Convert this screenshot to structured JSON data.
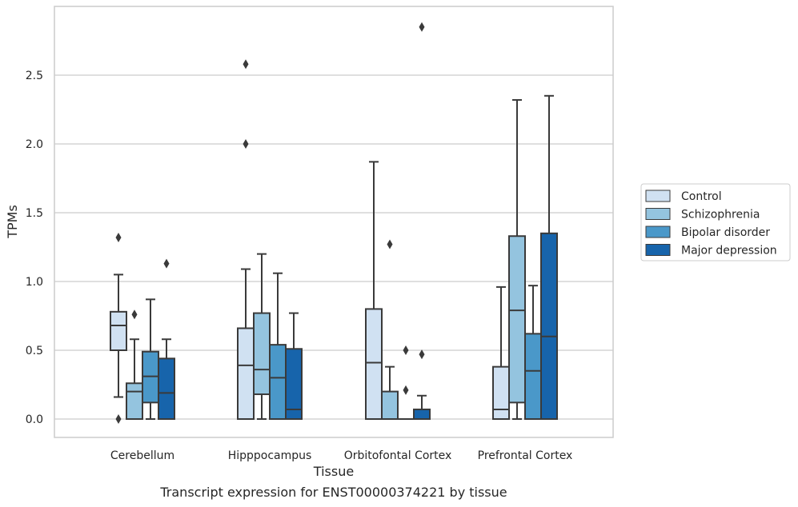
{
  "caption": "Transcript expression for ENST00000374221 by tissue",
  "chart_data": {
    "type": "box",
    "xlabel": "Tissue",
    "ylabel": "TPMs",
    "ylim": [
      -0.14,
      2.99
    ],
    "yticks": [
      0.0,
      0.5,
      1.0,
      1.5,
      2.0,
      2.5
    ],
    "ytick_labels": [
      "0.0",
      "0.5",
      "1.0",
      "1.5",
      "2.0",
      "2.5"
    ],
    "grid": "horizontal",
    "legend_position": "outside-right",
    "categories": [
      "Cerebellum",
      "Hipppocampus",
      "Orbitofontal Cortex",
      "Prefrontal Cortex"
    ],
    "series": [
      {
        "name": "Control",
        "color": "#d0e1f2",
        "boxes": [
          {
            "q1": 0.5,
            "median": 0.68,
            "q3": 0.78,
            "whislo": 0.16,
            "whishi": 1.05,
            "fliers": [
              1.32,
              0.0
            ]
          },
          {
            "q1": 0.0,
            "median": 0.39,
            "q3": 0.66,
            "whislo": 0.0,
            "whishi": 1.09,
            "fliers": [
              2.58,
              2.0
            ]
          },
          {
            "q1": 0.0,
            "median": 0.41,
            "q3": 0.8,
            "whislo": 0.0,
            "whishi": 1.87,
            "fliers": []
          },
          {
            "q1": 0.0,
            "median": 0.07,
            "q3": 0.38,
            "whislo": 0.0,
            "whishi": 0.96,
            "fliers": []
          }
        ]
      },
      {
        "name": "Schizophrenia",
        "color": "#94c4df",
        "boxes": [
          {
            "q1": 0.0,
            "median": 0.2,
            "q3": 0.26,
            "whislo": 0.0,
            "whishi": 0.58,
            "fliers": [
              0.76
            ]
          },
          {
            "q1": 0.18,
            "median": 0.36,
            "q3": 0.77,
            "whislo": 0.0,
            "whishi": 1.2,
            "fliers": []
          },
          {
            "q1": 0.0,
            "median": 0.0,
            "q3": 0.2,
            "whislo": 0.0,
            "whishi": 0.38,
            "fliers": [
              1.27
            ]
          },
          {
            "q1": 0.12,
            "median": 0.79,
            "q3": 1.33,
            "whislo": 0.0,
            "whishi": 2.32,
            "fliers": []
          }
        ]
      },
      {
        "name": "Bipolar disorder",
        "color": "#4a98c9",
        "boxes": [
          {
            "q1": 0.12,
            "median": 0.31,
            "q3": 0.49,
            "whislo": 0.0,
            "whishi": 0.87,
            "fliers": []
          },
          {
            "q1": 0.0,
            "median": 0.3,
            "q3": 0.54,
            "whislo": 0.0,
            "whishi": 1.06,
            "fliers": []
          },
          {
            "q1": 0.0,
            "median": 0.0,
            "q3": 0.0,
            "whislo": 0.0,
            "whishi": 0.0,
            "fliers": [
              0.5,
              0.21
            ]
          },
          {
            "q1": 0.0,
            "median": 0.35,
            "q3": 0.62,
            "whislo": 0.0,
            "whishi": 0.97,
            "fliers": []
          }
        ]
      },
      {
        "name": "Major depression",
        "color": "#1764ab",
        "boxes": [
          {
            "q1": 0.0,
            "median": 0.19,
            "q3": 0.44,
            "whislo": 0.0,
            "whishi": 0.58,
            "fliers": [
              1.13
            ]
          },
          {
            "q1": 0.0,
            "median": 0.07,
            "q3": 0.51,
            "whislo": 0.0,
            "whishi": 0.77,
            "fliers": []
          },
          {
            "q1": 0.0,
            "median": 0.0,
            "q3": 0.07,
            "whislo": 0.0,
            "whishi": 0.17,
            "fliers": [
              2.85,
              0.47
            ]
          },
          {
            "q1": 0.0,
            "median": 0.6,
            "q3": 1.35,
            "whislo": 0.0,
            "whishi": 2.35,
            "fliers": []
          }
        ]
      }
    ]
  }
}
